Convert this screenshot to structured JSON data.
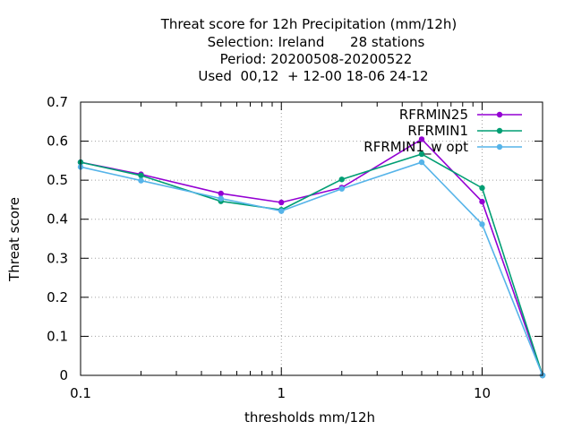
{
  "chart_data": {
    "type": "line",
    "title": [
      "Threat score  for 12h Precipitation (mm/12h)",
      "Selection: Ireland      28 stations",
      "Period: 20200508-20200522",
      "Used  00,12  + 12-00 18-06 24-12"
    ],
    "xlabel": "thresholds mm/12h",
    "ylabel": "Threat score",
    "xscale": "log",
    "xlim": [
      0.1,
      20
    ],
    "ylim": [
      0,
      0.7
    ],
    "xticks": [
      {
        "value": 0.1,
        "label": "0.1"
      },
      {
        "value": 1,
        "label": "1"
      },
      {
        "value": 10,
        "label": "10"
      }
    ],
    "yticks": [
      "0",
      "0.1",
      "0.2",
      "0.3",
      "0.4",
      "0.5",
      "0.6",
      "0.7"
    ],
    "grid": true,
    "legend_position": "top-right",
    "x": [
      0.1,
      0.2,
      0.5,
      1,
      2,
      5,
      10,
      20
    ],
    "series": [
      {
        "name": "RFRMIN25",
        "color": "#9400d3",
        "values": [
          0.546,
          0.515,
          0.466,
          0.443,
          0.481,
          0.605,
          0.445,
          0.0
        ]
      },
      {
        "name": "RFRMIN1",
        "color": "#009e73",
        "values": [
          0.546,
          0.512,
          0.446,
          0.424,
          0.502,
          0.567,
          0.48,
          0.0
        ]
      },
      {
        "name": "RFRMIN1_w opt",
        "color": "#56b4e9",
        "values": [
          0.534,
          0.499,
          0.453,
          0.421,
          0.478,
          0.546,
          0.387,
          0.0
        ]
      }
    ]
  }
}
